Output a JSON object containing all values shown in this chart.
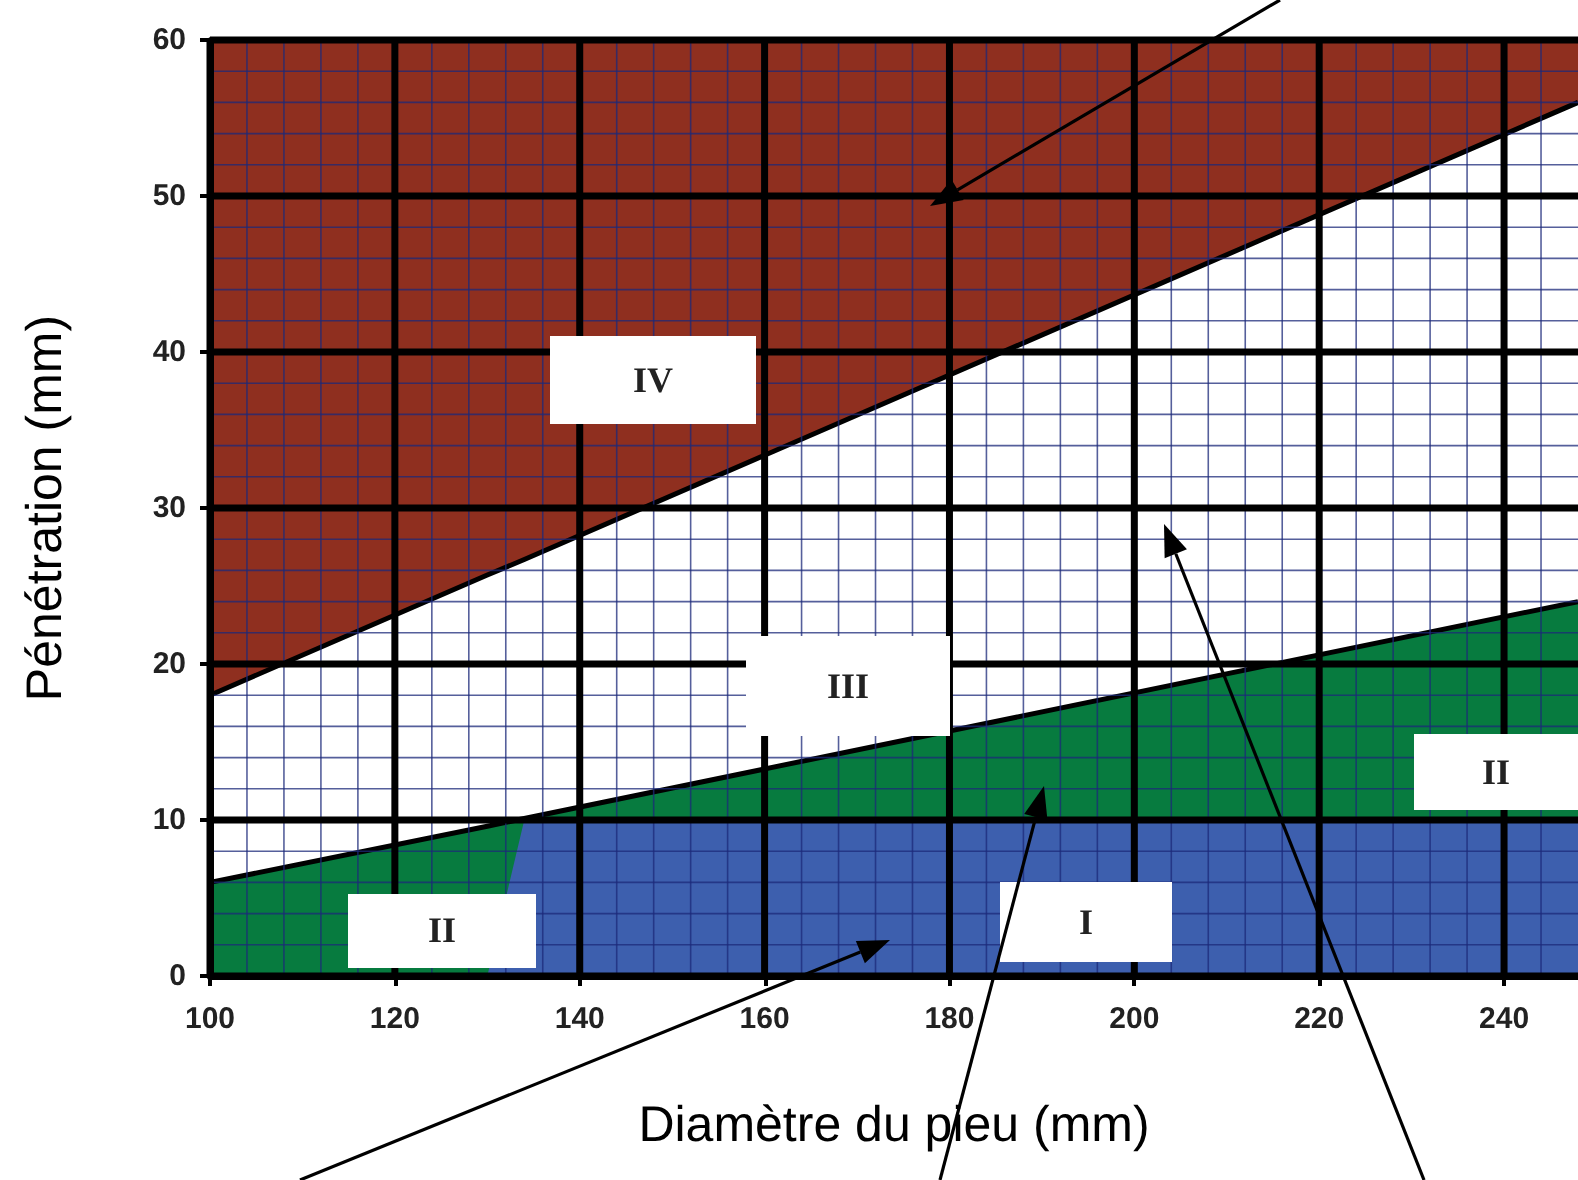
{
  "chart_data": {
    "type": "area",
    "stacked": true,
    "xlabel": "Diamètre du pieu (mm)",
    "ylabel": "Pénétration (mm)",
    "x": [
      100,
      130,
      134,
      248
    ],
    "series": [
      {
        "color": "#3d5fae",
        "values": [
          0,
          0,
          10,
          10
        ]
      },
      {
        "color": "#077b3f",
        "values": [
          6,
          9.6,
          0.1,
          14
        ]
      },
      {
        "color": "#ffffff",
        "values": [
          12,
          16.1,
          16.6,
          32
        ]
      },
      {
        "color": "#8f2f1f",
        "values": [
          42,
          34.3,
          33.3,
          4
        ]
      }
    ],
    "xlim": [
      100,
      248
    ],
    "xticks": [
      100,
      {
        "value": 104,
        "label": null
      },
      {
        "value": 108,
        "label": null
      },
      {
        "value": 112,
        "label": null
      },
      {
        "value": 116,
        "label": null
      },
      120,
      {
        "value": 124,
        "label": null
      },
      {
        "value": 128,
        "label": null
      },
      {
        "value": 132,
        "label": null
      },
      {
        "value": 136,
        "label": null
      },
      140,
      {
        "value": 144,
        "label": null
      },
      {
        "value": 148,
        "label": null
      },
      {
        "value": 152,
        "label": null
      },
      {
        "value": 156,
        "label": null
      },
      160,
      {
        "value": 164,
        "label": null
      },
      {
        "value": 168,
        "label": null
      },
      {
        "value": 172,
        "label": null
      },
      {
        "value": 176,
        "label": null
      },
      180,
      {
        "value": 184,
        "label": null
      },
      {
        "value": 188,
        "label": null
      },
      {
        "value": 192,
        "label": null
      },
      {
        "value": 196,
        "label": null
      },
      200,
      {
        "value": 204,
        "label": null
      },
      {
        "value": 208,
        "label": null
      },
      {
        "value": 212,
        "label": null
      },
      {
        "value": 216,
        "label": null
      },
      220,
      {
        "value": 224,
        "label": null
      },
      {
        "value": 228,
        "label": null
      },
      {
        "value": 232,
        "label": null
      },
      {
        "value": 236,
        "label": null
      },
      240,
      {
        "value": 244,
        "label": null
      }
    ],
    "ylim": [
      0,
      60
    ],
    "yticks": [
      0,
      {
        "value": 2,
        "label": null
      },
      {
        "value": 4,
        "label": null
      },
      {
        "value": 6,
        "label": null
      },
      {
        "value": 8,
        "label": null
      },
      10,
      {
        "value": 12,
        "label": null
      },
      {
        "value": 14,
        "label": null
      },
      {
        "value": 16,
        "label": null
      },
      {
        "value": 18,
        "label": null
      },
      20,
      {
        "value": 22,
        "label": null
      },
      {
        "value": 24,
        "label": null
      },
      {
        "value": 26,
        "label": null
      },
      {
        "value": 28,
        "label": null
      },
      30,
      {
        "value": 32,
        "label": null
      },
      {
        "value": 34,
        "label": null
      },
      {
        "value": 36,
        "label": null
      },
      {
        "value": 38,
        "label": null
      },
      40,
      {
        "value": 42,
        "label": null
      },
      {
        "value": 44,
        "label": null
      },
      {
        "value": 46,
        "label": null
      },
      {
        "value": 48,
        "label": null
      },
      50,
      {
        "value": 52,
        "label": null
      },
      {
        "value": 54,
        "label": null
      },
      {
        "value": 56,
        "label": null
      },
      {
        "value": 58,
        "label": null
      },
      60
    ],
    "grid": true,
    "annotations": [
      "IV",
      "III",
      "II",
      "II",
      "I"
    ]
  }
}
